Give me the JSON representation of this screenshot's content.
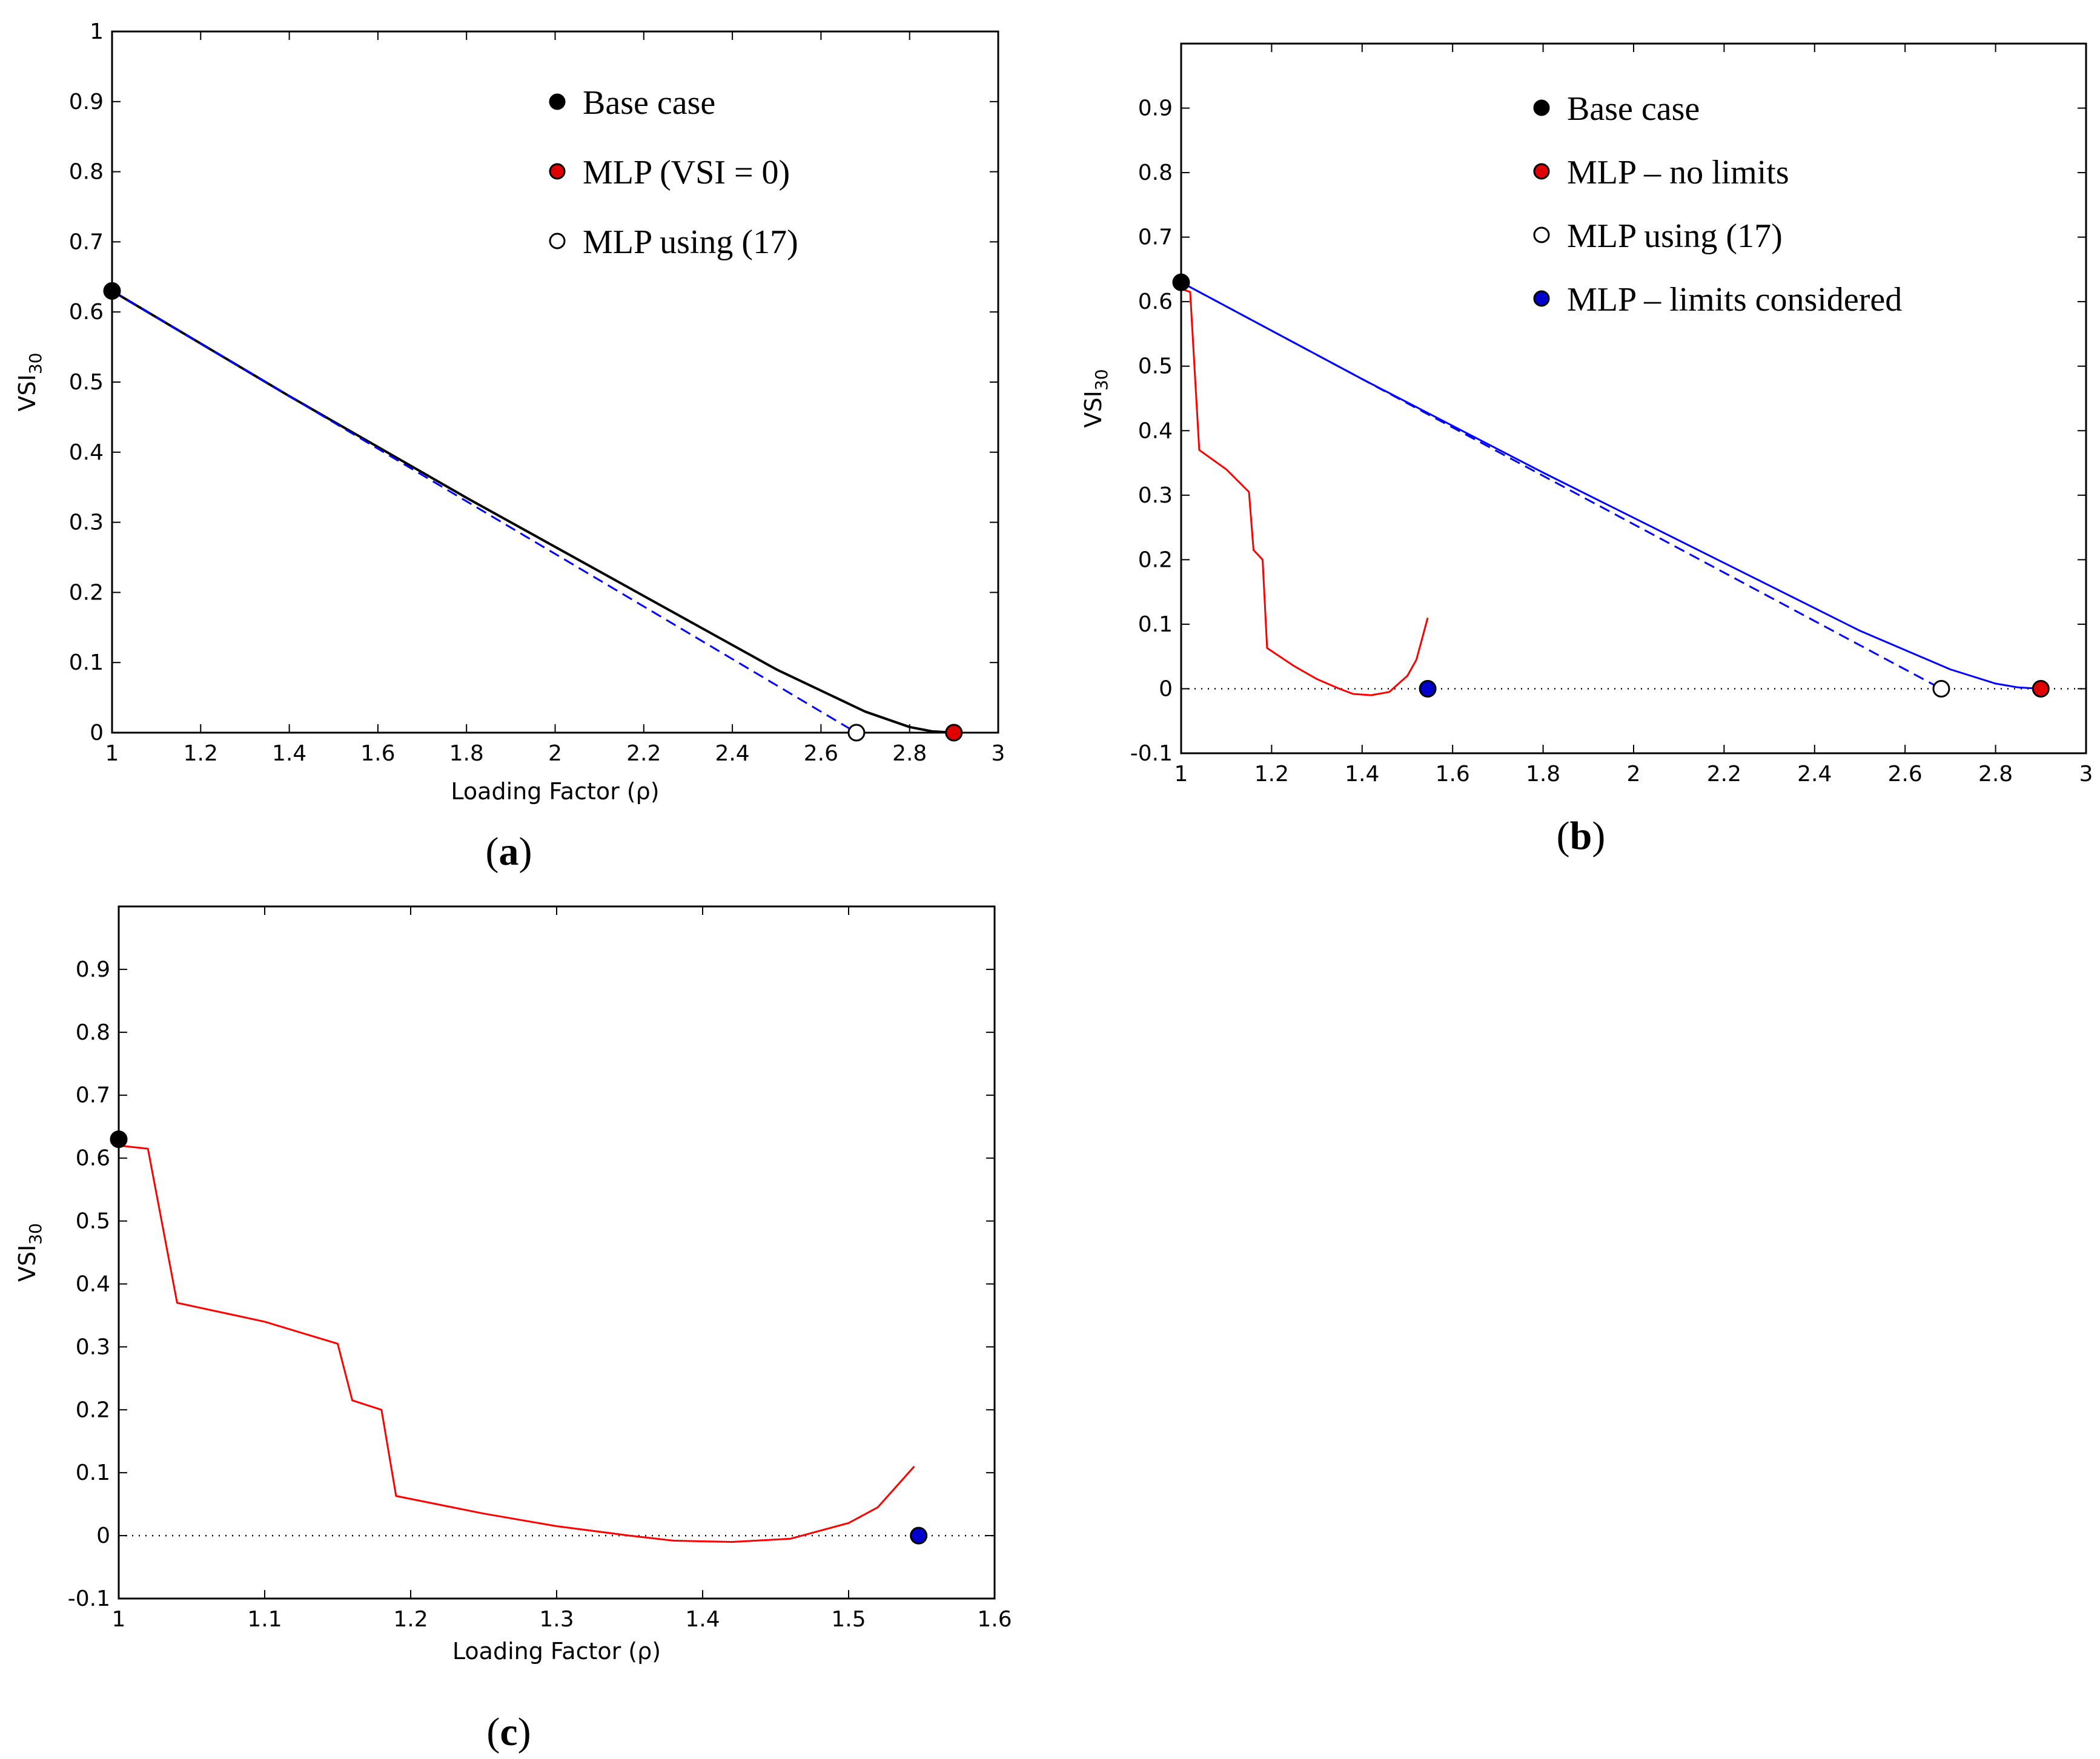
{
  "colors": {
    "black": "#000000",
    "red": "#ff0000",
    "blue": "#0000ff",
    "blue_marker": "#0000cc",
    "red_marker": "#e00000"
  },
  "chart_data": [
    {
      "id": "a",
      "type": "line",
      "caption": {
        "open": "(",
        "letter": "a",
        "close": ")"
      },
      "xlabel": "Loading Factor (ρ)",
      "ylabel": {
        "base": "VSI",
        "sub": "30"
      },
      "xlim": [
        1,
        3
      ],
      "ylim": [
        0,
        1
      ],
      "xticks": [
        1,
        1.2,
        1.4,
        1.6,
        1.8,
        2,
        2.2,
        2.4,
        2.6,
        2.8,
        3
      ],
      "xtick_labels": [
        "1",
        "1.2",
        "1.4",
        "1.6",
        "1.8",
        "2",
        "2.2",
        "2.4",
        "2.6",
        "2.8",
        "3"
      ],
      "yticks": [
        0,
        0.1,
        0.2,
        0.3,
        0.4,
        0.5,
        0.6,
        0.7,
        0.8,
        0.9,
        1
      ],
      "ytick_labels": [
        "0",
        "0.1",
        "0.2",
        "0.3",
        "0.4",
        "0.5",
        "0.6",
        "0.7",
        "0.8",
        "0.9",
        "1"
      ],
      "series": [
        {
          "name": "VSI curve",
          "color": "#000000",
          "dash": "",
          "width": 4,
          "x": [
            1,
            1.4,
            1.8,
            2.2,
            2.5,
            2.7,
            2.8,
            2.85,
            2.9
          ],
          "y": [
            0.63,
            0.48,
            0.335,
            0.195,
            0.09,
            0.03,
            0.008,
            0.002,
            0.0
          ]
        },
        {
          "name": "Linear estimate",
          "color": "#0000ff",
          "dash": "18,10",
          "width": 3,
          "x": [
            1,
            2.68
          ],
          "y": [
            0.63,
            0.0
          ]
        }
      ],
      "markers": [
        {
          "name": "Base case",
          "x": 1,
          "y": 0.63,
          "fill": "#000000"
        },
        {
          "name": "MLP (VSI = 0)",
          "x": 2.9,
          "y": 0.0,
          "fill": "#e00000"
        },
        {
          "name": "MLP using (17)",
          "x": 2.68,
          "y": 0.0,
          "fill": "#ffffff"
        }
      ],
      "zero_line": false,
      "legend": [
        {
          "label": "Base case",
          "fill": "#000000"
        },
        {
          "label": "MLP (VSI = 0)",
          "fill": "#e00000"
        },
        {
          "label": "MLP using (17)",
          "fill": "#ffffff"
        }
      ]
    },
    {
      "id": "b",
      "type": "line",
      "caption": {
        "open": "(",
        "letter": "b",
        "close": ")"
      },
      "xlabel": "",
      "ylabel": {
        "base": "VSI",
        "sub": "30"
      },
      "xlim": [
        1,
        3
      ],
      "ylim": [
        -0.1,
        1
      ],
      "xticks": [
        1,
        1.2,
        1.4,
        1.6,
        1.8,
        2,
        2.2,
        2.4,
        2.6,
        2.8,
        3
      ],
      "xtick_labels": [
        "1",
        "1.2",
        "1.4",
        "1.6",
        "1.8",
        "2",
        "2.2",
        "2.4",
        "2.6",
        "2.8",
        "3"
      ],
      "yticks": [
        -0.1,
        0,
        0.1,
        0.2,
        0.3,
        0.4,
        0.5,
        0.6,
        0.7,
        0.8,
        0.9
      ],
      "ytick_labels": [
        "-0.1",
        "0",
        "0.1",
        "0.2",
        "0.3",
        "0.4",
        "0.5",
        "0.6",
        "0.7",
        "0.8",
        "0.9"
      ],
      "series": [
        {
          "name": "VSI curve - no limits",
          "color": "#0000ff",
          "dash": "",
          "width": 3,
          "x": [
            1,
            1.4,
            1.8,
            2.2,
            2.5,
            2.7,
            2.8,
            2.85,
            2.9
          ],
          "y": [
            0.63,
            0.48,
            0.335,
            0.195,
            0.09,
            0.03,
            0.008,
            0.002,
            0.0
          ]
        },
        {
          "name": "Linear estimate",
          "color": "#0000ff",
          "dash": "18,10",
          "width": 3,
          "x": [
            1,
            2.68
          ],
          "y": [
            0.63,
            0.0
          ]
        },
        {
          "name": "VSI curve - limits considered",
          "color": "#ff0000",
          "dash": "",
          "width": 3,
          "x": [
            1,
            1.02,
            1.04,
            1.1,
            1.15,
            1.16,
            1.18,
            1.19,
            1.25,
            1.3,
            1.35,
            1.38,
            1.42,
            1.46,
            1.5,
            1.52,
            1.545
          ],
          "y": [
            0.62,
            0.615,
            0.37,
            0.34,
            0.305,
            0.215,
            0.2,
            0.063,
            0.035,
            0.015,
            0.0,
            -0.008,
            -0.01,
            -0.005,
            0.02,
            0.045,
            0.11
          ]
        }
      ],
      "markers": [
        {
          "name": "Base case",
          "x": 1,
          "y": 0.63,
          "fill": "#000000"
        },
        {
          "name": "MLP – no limits",
          "x": 2.9,
          "y": 0.0,
          "fill": "#e00000"
        },
        {
          "name": "MLP using (17)",
          "x": 2.68,
          "y": 0.0,
          "fill": "#ffffff"
        },
        {
          "name": "MLP – limits considered",
          "x": 1.545,
          "y": 0.0,
          "fill": "#0000cc"
        }
      ],
      "zero_line": true,
      "legend": [
        {
          "label": "Base case",
          "fill": "#000000"
        },
        {
          "label": "MLP – no limits",
          "fill": "#e00000"
        },
        {
          "label": "MLP using (17)",
          "fill": "#ffffff"
        },
        {
          "label": "MLP – limits considered",
          "fill": "#0000cc"
        }
      ]
    },
    {
      "id": "c",
      "type": "line",
      "caption": {
        "open": "(",
        "letter": "c",
        "close": ")"
      },
      "xlabel": "Loading Factor (ρ)",
      "ylabel": {
        "base": "VSI",
        "sub": "30"
      },
      "xlim": [
        1,
        1.6
      ],
      "ylim": [
        -0.1,
        1
      ],
      "xticks": [
        1,
        1.1,
        1.2,
        1.3,
        1.4,
        1.5,
        1.6
      ],
      "xtick_labels": [
        "1",
        "1.1",
        "1.2",
        "1.3",
        "1.4",
        "1.5",
        "1.6"
      ],
      "yticks": [
        -0.1,
        0,
        0.1,
        0.2,
        0.3,
        0.4,
        0.5,
        0.6,
        0.7,
        0.8,
        0.9
      ],
      "ytick_labels": [
        "-0.1",
        "0",
        "0.1",
        "0.2",
        "0.3",
        "0.4",
        "0.5",
        "0.6",
        "0.7",
        "0.8",
        "0.9"
      ],
      "series": [
        {
          "name": "VSI curve - limits considered",
          "color": "#ff0000",
          "dash": "",
          "width": 3,
          "x": [
            1,
            1.02,
            1.04,
            1.1,
            1.15,
            1.16,
            1.18,
            1.19,
            1.25,
            1.3,
            1.35,
            1.38,
            1.42,
            1.46,
            1.5,
            1.52,
            1.545
          ],
          "y": [
            0.62,
            0.615,
            0.37,
            0.34,
            0.305,
            0.215,
            0.2,
            0.063,
            0.035,
            0.015,
            0.0,
            -0.008,
            -0.01,
            -0.005,
            0.02,
            0.045,
            0.11
          ]
        }
      ],
      "markers": [
        {
          "name": "Base case",
          "x": 1,
          "y": 0.63,
          "fill": "#000000"
        },
        {
          "name": "MLP – limits considered",
          "x": 1.548,
          "y": 0.0,
          "fill": "#0000cc"
        }
      ],
      "zero_line": true,
      "legend": []
    }
  ]
}
